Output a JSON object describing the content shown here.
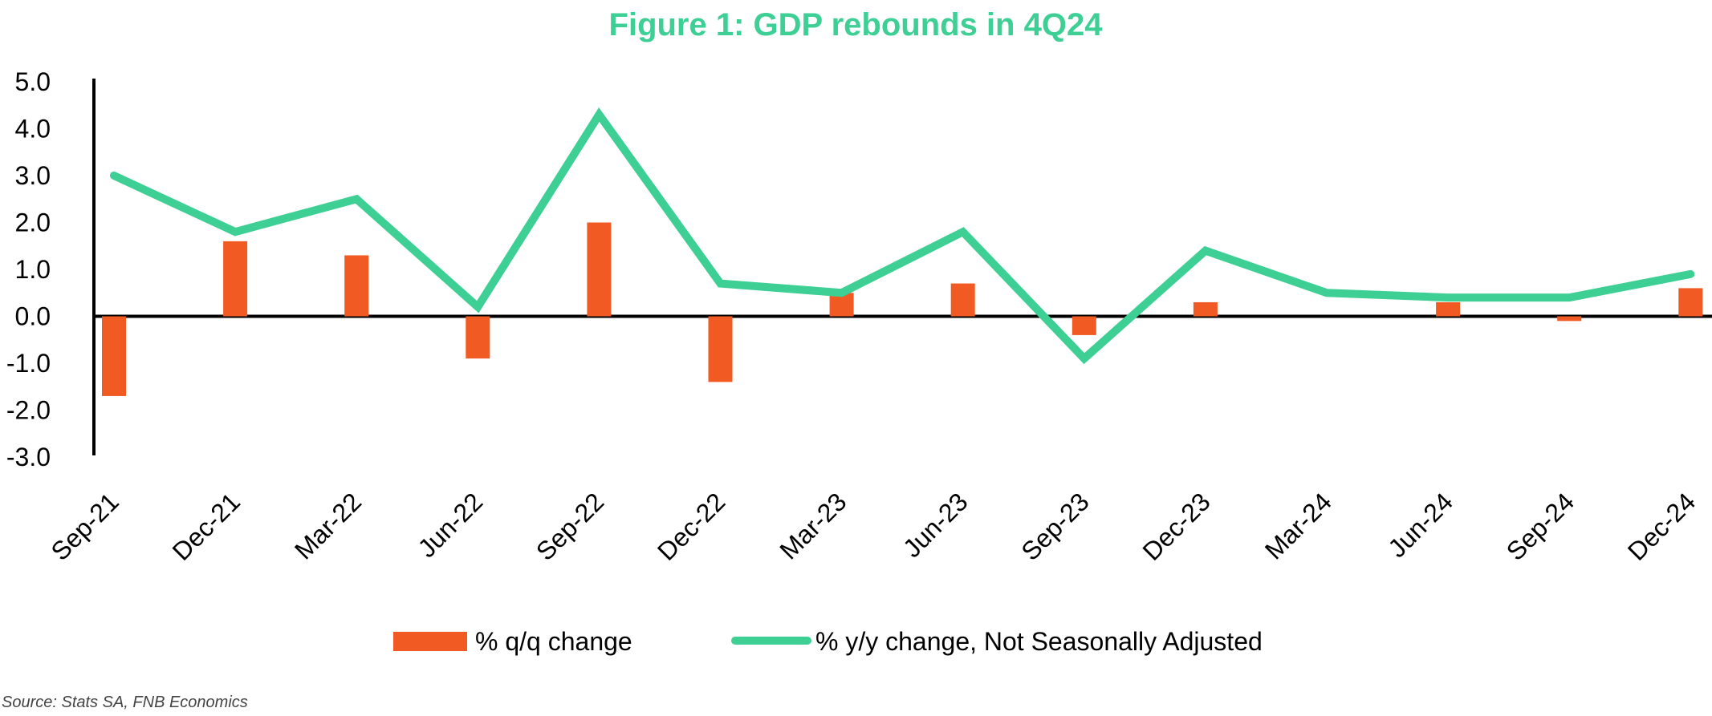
{
  "chart_data": {
    "type": "bar",
    "title": "Figure 1: GDP rebounds in 4Q24",
    "categories": [
      "Sep-21",
      "Dec-21",
      "Mar-22",
      "Jun-22",
      "Sep-22",
      "Dec-22",
      "Mar-23",
      "Jun-23",
      "Sep-23",
      "Dec-23",
      "Mar-24",
      "Jun-24",
      "Sep-24",
      "Dec-24"
    ],
    "series": [
      {
        "name": "% q/q change",
        "type": "bar",
        "color": "#f15a22",
        "values": [
          -1.7,
          1.6,
          1.3,
          -0.9,
          2.0,
          -1.4,
          0.5,
          0.7,
          -0.4,
          0.3,
          0.0,
          0.3,
          -0.1,
          0.6
        ]
      },
      {
        "name": "% y/y change, Not Seasonally Adjusted",
        "type": "line",
        "color": "#3ecf95",
        "values": [
          3.0,
          1.8,
          2.5,
          0.2,
          4.3,
          0.7,
          0.5,
          1.8,
          -0.9,
          1.4,
          0.5,
          0.4,
          0.4,
          0.9
        ]
      }
    ],
    "ylim": [
      -3.0,
      5.0
    ],
    "yticks": [
      "5.0",
      "4.0",
      "3.0",
      "2.0",
      "1.0",
      "0.0",
      "-1.0",
      "-2.0",
      "-3.0"
    ],
    "legend_position": "bottom",
    "grid": false
  },
  "source": "Source: Stats SA, FNB Economics",
  "colors": {
    "title": "#3ecf95",
    "axis": "#000000"
  }
}
